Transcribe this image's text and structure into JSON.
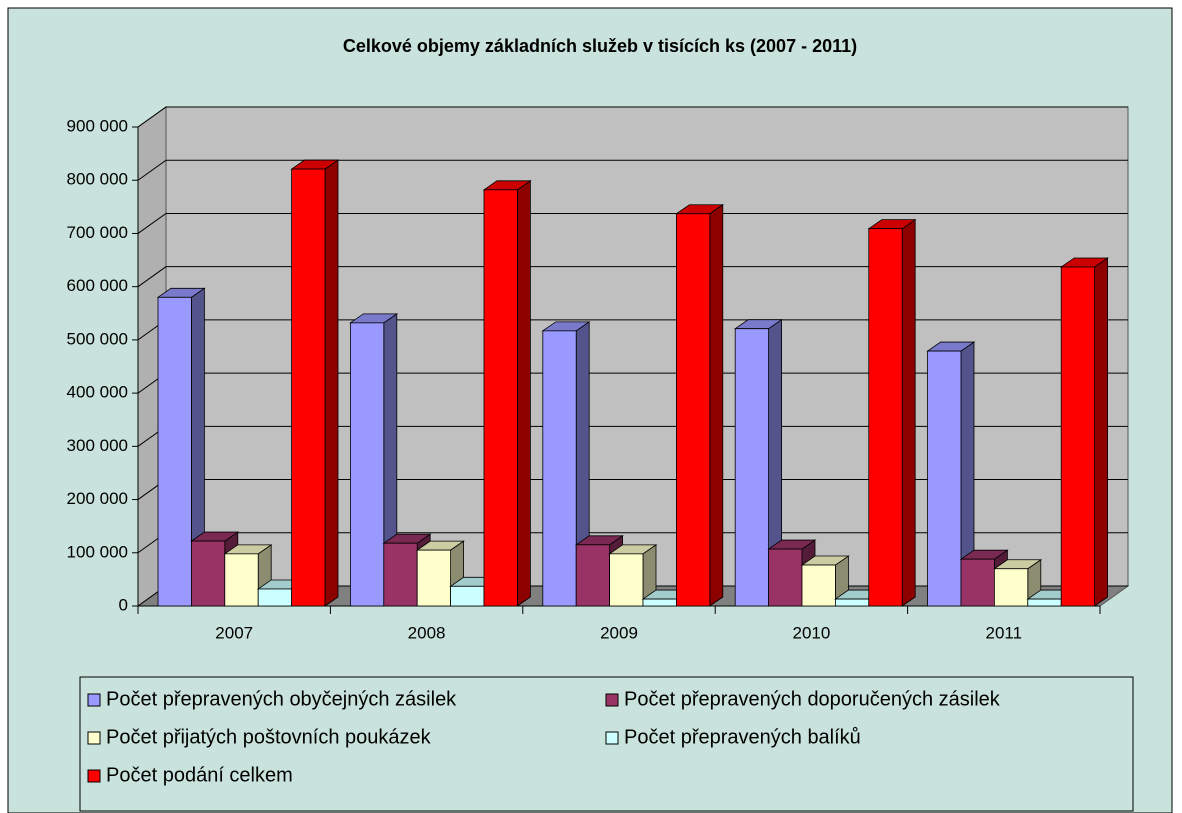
{
  "chart_data": {
    "type": "bar3d",
    "title": "Celkové objemy základních služeb v tisících ks (2007 - 2011)",
    "categories": [
      "2007",
      "2008",
      "2009",
      "2010",
      "2011"
    ],
    "series": [
      {
        "name": "Počet přepravených obyčejných zásilek",
        "color": "#9999ff",
        "values": [
          580000,
          532000,
          517000,
          521000,
          479000
        ]
      },
      {
        "name": "Počet přepravených doporučených zásilek",
        "color": "#993366",
        "values": [
          122000,
          118000,
          115000,
          107000,
          88000
        ]
      },
      {
        "name": "Počet přijatých poštovních poukázek",
        "color": "#ffffcc",
        "values": [
          98000,
          105000,
          98000,
          77000,
          70000
        ]
      },
      {
        "name": "Počet přepravených balíků",
        "color": "#ccffff",
        "values": [
          32000,
          37000,
          13000,
          13000,
          13000
        ]
      },
      {
        "name": "Počet podání celkem",
        "color": "#ff0000",
        "values": [
          821000,
          782000,
          737000,
          709000,
          637000
        ]
      }
    ],
    "ylim": [
      0,
      900000
    ],
    "yticks": [
      0,
      {
        "value": 100000,
        "label": "100 000"
      },
      {
        "value": 200000,
        "label": "200 000"
      },
      {
        "value": 300000,
        "label": "300 000"
      },
      {
        "value": 400000,
        "label": "400 000"
      },
      {
        "value": 500000,
        "label": "500 000"
      },
      {
        "value": 600000,
        "label": "600 000"
      },
      {
        "value": 700000,
        "label": "700 000"
      },
      {
        "value": 800000,
        "label": "800 000"
      },
      {
        "value": 900000,
        "label": "900 000"
      }
    ],
    "grid": true
  }
}
